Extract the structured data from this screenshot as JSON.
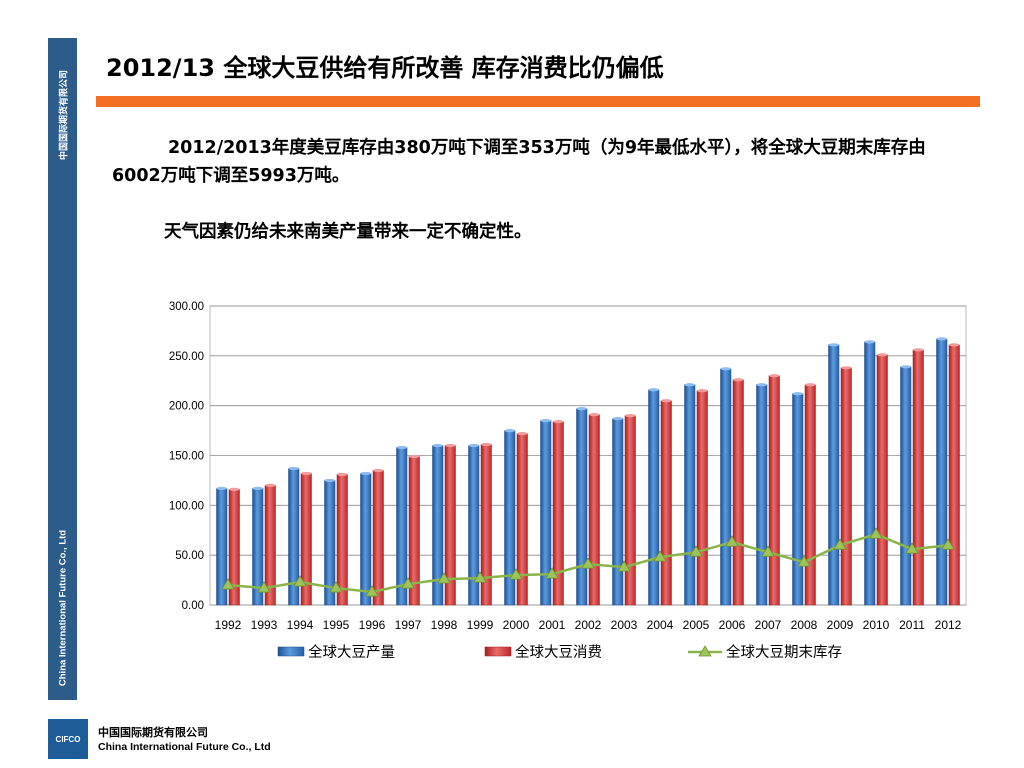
{
  "sidebar": {
    "top_text": "中国国际期货有限公司",
    "bottom_text": "China International Future Co., Ltd"
  },
  "slide": {
    "title": "2012/13 全球大豆供给有所改善  库存消费比仍偏低",
    "paragraph1": "2012/2013年度美豆库存由380万吨下调至353万吨（为9年最低水平），将全球大豆期末库存由6002万吨下调至5993万吨。",
    "paragraph2": "天气因素仍给未来南美产量带来一定不确定性。"
  },
  "footer": {
    "logo_text": "CIFCO",
    "company_cn": "中国国际期货有限公司",
    "company_en": "China International Future Co., Ltd"
  },
  "colors": {
    "accent_orange": "#f36f21",
    "sidebar_blue": "#2b5c8a",
    "production_blue": "#3a78c9",
    "consumption_red": "#d63a3a",
    "stock_green": "#8ab44a"
  },
  "chart_data": {
    "type": "bar",
    "categories": [
      "1992",
      "1993",
      "1994",
      "1995",
      "1996",
      "1997",
      "1998",
      "1999",
      "2000",
      "2001",
      "2002",
      "2003",
      "2004",
      "2005",
      "2006",
      "2007",
      "2008",
      "2009",
      "2010",
      "2011",
      "2012"
    ],
    "ylim": [
      0,
      300
    ],
    "yticks": [
      "0.00",
      "50.00",
      "100.00",
      "150.00",
      "200.00",
      "250.00",
      "300.00"
    ],
    "grid": true,
    "legend_position": "bottom",
    "series": [
      {
        "name": "全球大豆产量",
        "type": "bar",
        "color": "#3a78c9",
        "values": [
          117,
          117,
          137,
          125,
          132,
          158,
          160,
          160,
          175,
          185,
          197,
          187,
          216,
          221,
          237,
          221,
          212,
          261,
          264,
          239,
          267
        ]
      },
      {
        "name": "全球大豆消费",
        "type": "bar",
        "color": "#d63a3a",
        "values": [
          116,
          120,
          132,
          131,
          135,
          149,
          160,
          161,
          172,
          184,
          191,
          190,
          205,
          215,
          226,
          230,
          221,
          238,
          251,
          256,
          261
        ]
      },
      {
        "name": "全球大豆期末库存",
        "type": "line",
        "color": "#8ab44a",
        "values": [
          20,
          17,
          23,
          17,
          13,
          21,
          26,
          27,
          30,
          31,
          41,
          38,
          48,
          53,
          63,
          53,
          43,
          60,
          71,
          56,
          60
        ]
      }
    ]
  }
}
